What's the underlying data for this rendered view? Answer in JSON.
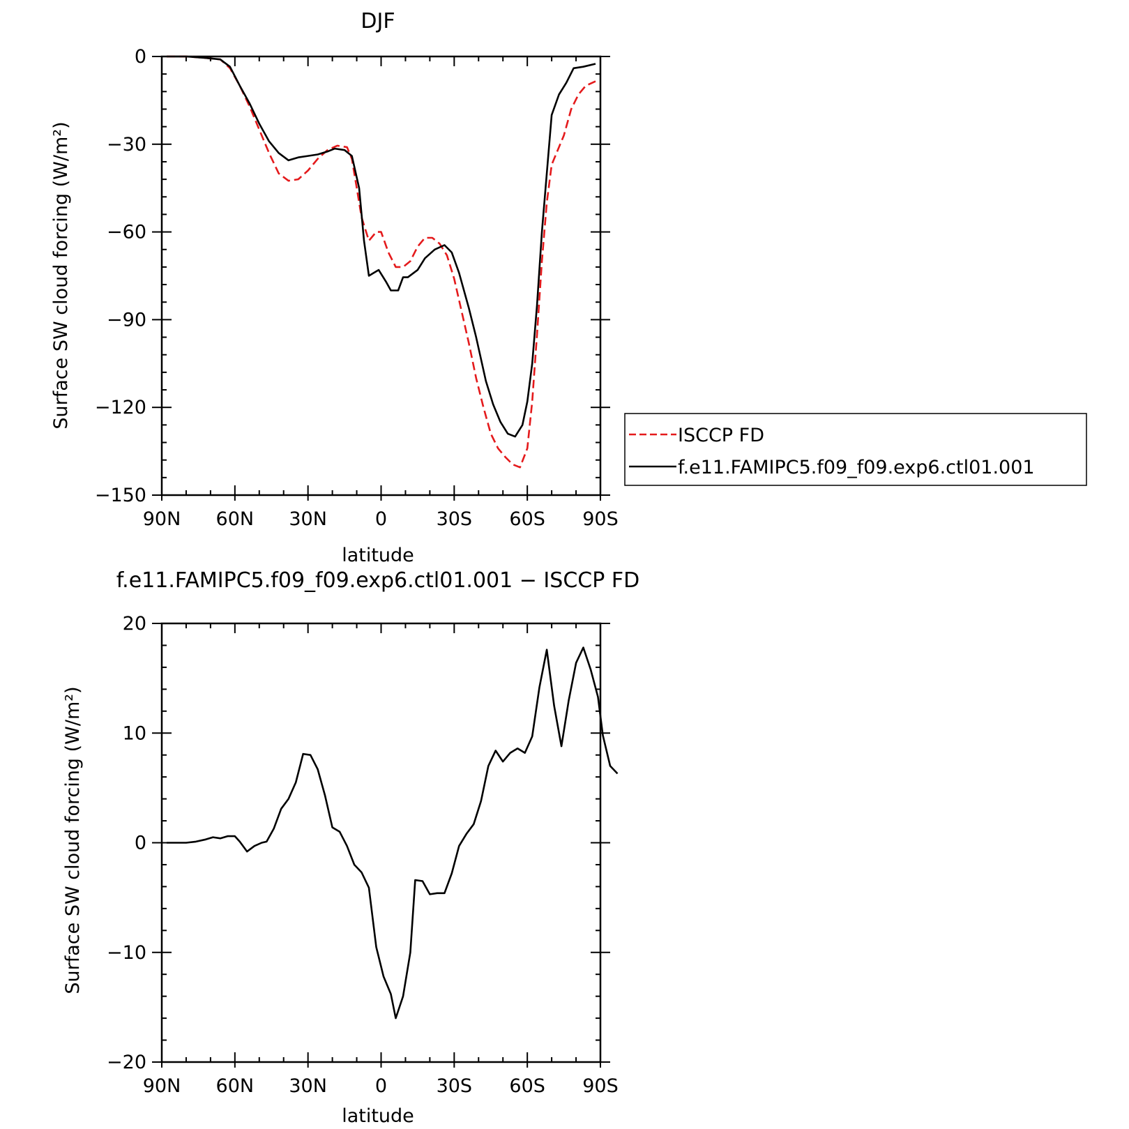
{
  "chart_data": [
    {
      "type": "line",
      "title": "DJF",
      "xlabel": "latitude",
      "ylabel": "Surface SW cloud forcing (W/m²)",
      "xlim": [
        90,
        -90
      ],
      "ylim": [
        -150,
        0
      ],
      "x_ticks": [
        {
          "value": 90,
          "label": "90N"
        },
        {
          "value": 60,
          "label": "60N"
        },
        {
          "value": 30,
          "label": "30N"
        },
        {
          "value": 0,
          "label": "0"
        },
        {
          "value": -30,
          "label": "30S"
        },
        {
          "value": -60,
          "label": "60S"
        },
        {
          "value": -90,
          "label": "90S"
        }
      ],
      "y_ticks": [
        {
          "value": 0,
          "label": "0"
        },
        {
          "value": -30,
          "label": "−30"
        },
        {
          "value": -60,
          "label": "−60"
        },
        {
          "value": -90,
          "label": "−90"
        },
        {
          "value": -120,
          "label": "−120"
        },
        {
          "value": -150,
          "label": "−150"
        }
      ],
      "legend_position": "right",
      "series": [
        {
          "name": "ISCCP FD",
          "color": "#e41a1c",
          "dash": "dashed",
          "points": [
            [
              88,
              0
            ],
            [
              80,
              0
            ],
            [
              72,
              -0.5
            ],
            [
              66,
              -1
            ],
            [
              62,
              -4
            ],
            [
              58,
              -10
            ],
            [
              54,
              -17
            ],
            [
              50,
              -25
            ],
            [
              46,
              -33
            ],
            [
              42,
              -40
            ],
            [
              38,
              -42.5
            ],
            [
              34,
              -42
            ],
            [
              30,
              -39
            ],
            [
              26,
              -35
            ],
            [
              22,
              -32
            ],
            [
              18,
              -30.5
            ],
            [
              14,
              -31
            ],
            [
              12,
              -35
            ],
            [
              10,
              -45
            ],
            [
              8,
              -55
            ],
            [
              5,
              -63
            ],
            [
              2,
              -60
            ],
            [
              0,
              -60
            ],
            [
              -3,
              -67
            ],
            [
              -6,
              -72
            ],
            [
              -9,
              -72
            ],
            [
              -12,
              -70
            ],
            [
              -15,
              -65
            ],
            [
              -18,
              -62
            ],
            [
              -21,
              -62
            ],
            [
              -24,
              -64
            ],
            [
              -27,
              -68
            ],
            [
              -30,
              -76
            ],
            [
              -33,
              -87
            ],
            [
              -36,
              -98
            ],
            [
              -39,
              -110
            ],
            [
              -42,
              -120
            ],
            [
              -45,
              -129
            ],
            [
              -48,
              -134
            ],
            [
              -51,
              -137
            ],
            [
              -54,
              -139.5
            ],
            [
              -57,
              -140.5
            ],
            [
              -60,
              -134
            ],
            [
              -62,
              -118
            ],
            [
              -64,
              -95
            ],
            [
              -66,
              -70
            ],
            [
              -68,
              -50
            ],
            [
              -70,
              -37
            ],
            [
              -72,
              -33
            ],
            [
              -75,
              -27
            ],
            [
              -78,
              -18
            ],
            [
              -81,
              -13
            ],
            [
              -84,
              -10
            ],
            [
              -88,
              -8.5
            ]
          ]
        },
        {
          "name": "f.e11.FAMIPC5.f09_f09.exp6.ctl01.001",
          "color": "#000000",
          "dash": "solid",
          "points": [
            [
              88,
              0
            ],
            [
              80,
              0
            ],
            [
              72,
              -0.5
            ],
            [
              66,
              -1
            ],
            [
              62,
              -3.5
            ],
            [
              58,
              -10
            ],
            [
              54,
              -16
            ],
            [
              50,
              -23
            ],
            [
              46,
              -29
            ],
            [
              42,
              -33
            ],
            [
              38,
              -35.5
            ],
            [
              34,
              -34.5
            ],
            [
              30,
              -34
            ],
            [
              26,
              -33.5
            ],
            [
              22,
              -32.5
            ],
            [
              19,
              -31.5
            ],
            [
              15,
              -32
            ],
            [
              12,
              -34
            ],
            [
              9,
              -45
            ],
            [
              7,
              -63
            ],
            [
              5,
              -75
            ],
            [
              3,
              -74
            ],
            [
              1,
              -73
            ],
            [
              -2,
              -77
            ],
            [
              -4,
              -80
            ],
            [
              -7,
              -80
            ],
            [
              -9,
              -75.5
            ],
            [
              -11,
              -75.5
            ],
            [
              -15,
              -73
            ],
            [
              -18,
              -69
            ],
            [
              -22,
              -66
            ],
            [
              -26,
              -64.5
            ],
            [
              -29,
              -67
            ],
            [
              -32,
              -74
            ],
            [
              -36,
              -86
            ],
            [
              -39,
              -96
            ],
            [
              -43,
              -111
            ],
            [
              -46,
              -119
            ],
            [
              -49,
              -125
            ],
            [
              -52,
              -129
            ],
            [
              -55,
              -130
            ],
            [
              -58,
              -126
            ],
            [
              -60,
              -118
            ],
            [
              -62,
              -105
            ],
            [
              -64,
              -85
            ],
            [
              -66,
              -60
            ],
            [
              -68,
              -40
            ],
            [
              -70,
              -20
            ],
            [
              -73,
              -13
            ],
            [
              -76,
              -9
            ],
            [
              -79,
              -4
            ],
            [
              -83,
              -3.5
            ],
            [
              -88,
              -2.5
            ]
          ]
        }
      ]
    },
    {
      "type": "line",
      "title": "f.e11.FAMIPC5.f09_f09.exp6.ctl01.001 − ISCCP FD",
      "xlabel": "latitude",
      "ylabel": "Surface SW cloud forcing (W/m²)",
      "xlim": [
        90,
        -90
      ],
      "ylim": [
        -20,
        20
      ],
      "x_ticks": [
        {
          "value": 90,
          "label": "90N"
        },
        {
          "value": 60,
          "label": "60N"
        },
        {
          "value": 30,
          "label": "30N"
        },
        {
          "value": 0,
          "label": "0"
        },
        {
          "value": -30,
          "label": "30S"
        },
        {
          "value": -60,
          "label": "60S"
        },
        {
          "value": -90,
          "label": "90S"
        }
      ],
      "y_ticks": [
        {
          "value": 20,
          "label": "20"
        },
        {
          "value": 10,
          "label": "10"
        },
        {
          "value": 0,
          "label": "0"
        },
        {
          "value": -10,
          "label": "−10"
        },
        {
          "value": -20,
          "label": "−20"
        }
      ],
      "series": [
        {
          "color": "#000000",
          "dash": "solid",
          "points": [
            [
              88,
              0
            ],
            [
              80,
              0
            ],
            [
              76,
              0.1
            ],
            [
              72,
              0.3
            ],
            [
              69,
              0.5
            ],
            [
              66,
              0.4
            ],
            [
              63,
              0.6
            ],
            [
              60,
              0.6
            ],
            [
              58,
              0.1
            ],
            [
              55,
              -0.8
            ],
            [
              52,
              -0.3
            ],
            [
              49,
              0
            ],
            [
              47,
              0.1
            ],
            [
              44,
              1.3
            ],
            [
              41,
              3.1
            ],
            [
              38,
              4
            ],
            [
              35,
              5.5
            ],
            [
              32,
              8.1
            ],
            [
              29,
              8
            ],
            [
              26,
              6.7
            ],
            [
              23,
              4.3
            ],
            [
              20,
              1.4
            ],
            [
              17,
              1
            ],
            [
              14,
              -0.3
            ],
            [
              11,
              -2
            ],
            [
              8,
              -2.7
            ],
            [
              5,
              -4.1
            ],
            [
              2,
              -9.5
            ],
            [
              -1,
              -12.2
            ],
            [
              -4,
              -13.8
            ],
            [
              -6,
              -16
            ],
            [
              -9,
              -14
            ],
            [
              -12,
              -10
            ],
            [
              -14,
              -3.4
            ],
            [
              -17,
              -3.5
            ],
            [
              -20,
              -4.7
            ],
            [
              -23,
              -4.6
            ],
            [
              -26,
              -4.6
            ],
            [
              -29,
              -2.8
            ],
            [
              -32,
              -0.3
            ],
            [
              -35,
              0.8
            ],
            [
              -38,
              1.7
            ],
            [
              -41,
              3.8
            ],
            [
              -44,
              7
            ],
            [
              -47,
              8.4
            ],
            [
              -50,
              7.4
            ],
            [
              -53,
              8.2
            ],
            [
              -56,
              8.6
            ],
            [
              -59,
              8.2
            ],
            [
              -62,
              9.7
            ],
            [
              -65,
              14.2
            ],
            [
              -68,
              17.6
            ],
            [
              -71,
              12.5
            ],
            [
              -74,
              8.8
            ],
            [
              -77,
              13
            ],
            [
              -80,
              16.4
            ],
            [
              -83,
              17.8
            ],
            [
              -86,
              15.8
            ],
            [
              -89,
              13.3
            ],
            [
              -91,
              9.8
            ],
            [
              -94,
              7
            ],
            [
              -97,
              6.3
            ]
          ]
        }
      ]
    }
  ]
}
